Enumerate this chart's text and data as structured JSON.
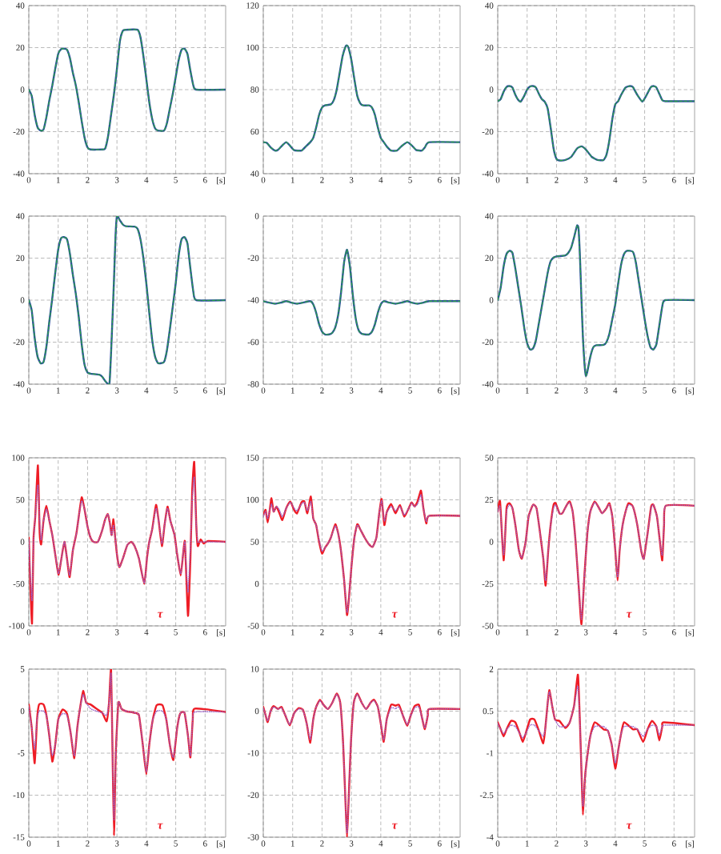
{
  "chart_data": [
    {
      "type": "line",
      "xlim": [
        0,
        6.7
      ],
      "ylim": [
        -40,
        40
      ],
      "xticks": [
        0,
        1,
        2,
        3,
        4,
        5,
        6
      ],
      "yticks": [
        -40,
        -20,
        0,
        20,
        40
      ],
      "xlabel": "[s]",
      "grid": true,
      "x": [
        0,
        0.1,
        0.2,
        0.3,
        0.4,
        0.5,
        0.6,
        0.7,
        0.8,
        0.9,
        1.0,
        1.1,
        1.2,
        1.3,
        1.4,
        1.5,
        1.6,
        1.7,
        1.8,
        1.9,
        2.0,
        2.1,
        2.5,
        2.6,
        2.7,
        2.8,
        2.9,
        3.0,
        3.1,
        3.2,
        3.3,
        3.7,
        3.8,
        3.9,
        4.0,
        4.1,
        4.2,
        4.3,
        4.4,
        4.6,
        4.7,
        4.8,
        4.9,
        5.0,
        5.1,
        5.2,
        5.3,
        5.4,
        5.5,
        5.6,
        5.7,
        6.7
      ],
      "series": [
        {
          "color": "#2d4e9e",
          "line_style": "solid",
          "values": [
            0,
            -3,
            -12,
            -18,
            -19.5,
            -19,
            -13,
            -5,
            2,
            10,
            17,
            19.3,
            19.5,
            19,
            15,
            8,
            2,
            -6,
            -15,
            -23,
            -27.5,
            -28.5,
            -28.5,
            -28,
            -22,
            -12,
            -2,
            10,
            23,
            28,
            28.5,
            28.5,
            25,
            16,
            5,
            -6,
            -14,
            -18.5,
            -19.5,
            -19.5,
            -16,
            -9,
            -2,
            6,
            14,
            19,
            19.5,
            17,
            9,
            2,
            0,
            0
          ]
        },
        {
          "color": "#2ca24a",
          "line_style": "dashed",
          "values": [
            0,
            -3,
            -12,
            -18,
            -19.5,
            -19,
            -13,
            -5,
            2,
            10,
            17,
            19.3,
            19.5,
            19,
            15,
            8,
            2,
            -6,
            -15,
            -23,
            -27.5,
            -28.5,
            -28.5,
            -28,
            -22,
            -12,
            -2,
            10,
            23,
            28,
            28.5,
            28.5,
            25,
            16,
            5,
            -6,
            -14,
            -18.5,
            -19.5,
            -19.5,
            -16,
            -9,
            -2,
            6,
            14,
            19,
            19.5,
            17,
            9,
            2,
            0,
            0
          ]
        }
      ]
    },
    {
      "type": "line",
      "xlim": [
        0,
        6.7
      ],
      "ylim": [
        40,
        120
      ],
      "xticks": [
        0,
        1,
        2,
        3,
        4,
        5,
        6
      ],
      "yticks": [
        40,
        60,
        80,
        100,
        120
      ],
      "xlabel": "[s]",
      "grid": true,
      "x": [
        0,
        0.12,
        0.25,
        0.4,
        0.5,
        0.65,
        0.78,
        0.9,
        1.05,
        1.3,
        1.45,
        1.6,
        1.7,
        1.8,
        1.9,
        2.0,
        2.1,
        2.3,
        2.4,
        2.5,
        2.6,
        2.7,
        2.8,
        2.85,
        2.9,
        3.0,
        3.1,
        3.2,
        3.3,
        3.4,
        3.6,
        3.7,
        3.8,
        3.9,
        4.0,
        4.1,
        4.2,
        4.35,
        4.55,
        4.7,
        4.9,
        5.05,
        5.2,
        5.4,
        5.5,
        5.65,
        6.7
      ],
      "series": [
        {
          "color": "#2d4e9e",
          "line_style": "solid",
          "values": [
            55,
            54.7,
            52.5,
            51,
            51.3,
            53.5,
            55,
            53.5,
            51.2,
            51,
            53,
            55,
            57,
            62,
            68,
            71.5,
            72.5,
            73,
            75,
            80,
            88,
            96,
            100.5,
            101,
            100,
            94,
            85,
            77,
            73.5,
            72.5,
            72.5,
            71.5,
            68,
            62,
            57,
            55,
            53,
            51,
            51,
            53,
            55,
            53.5,
            51.3,
            51,
            52.5,
            55,
            55
          ]
        },
        {
          "color": "#2ca24a",
          "line_style": "dashed",
          "values": [
            55,
            54.7,
            52.5,
            51,
            51.3,
            53.5,
            55,
            53.5,
            51.2,
            51,
            53,
            55,
            57,
            62,
            68,
            71.5,
            72.5,
            73,
            75,
            80,
            88,
            96,
            100.5,
            101,
            100,
            94,
            85,
            77,
            73.5,
            72.5,
            72.5,
            71.5,
            68,
            62,
            57,
            55,
            53,
            51,
            51,
            53,
            55,
            53.5,
            51.3,
            51,
            52.5,
            55,
            55
          ]
        }
      ]
    },
    {
      "type": "line",
      "xlim": [
        0,
        6.7
      ],
      "ylim": [
        -40,
        40
      ],
      "xticks": [
        0,
        1,
        2,
        3,
        4,
        5,
        6
      ],
      "yticks": [
        -40,
        -20,
        0,
        20,
        40
      ],
      "xlabel": "[s]",
      "grid": true,
      "x": [
        0,
        0.1,
        0.2,
        0.3,
        0.4,
        0.5,
        0.6,
        0.7,
        0.78,
        0.9,
        1.0,
        1.1,
        1.2,
        1.3,
        1.4,
        1.5,
        1.6,
        1.7,
        1.8,
        1.9,
        2.0,
        2.1,
        2.3,
        2.5,
        2.7,
        2.85,
        3.0,
        3.2,
        3.4,
        3.6,
        3.7,
        3.8,
        3.9,
        4.0,
        4.1,
        4.2,
        4.35,
        4.5,
        4.6,
        4.75,
        4.92,
        5.05,
        5.2,
        5.3,
        5.4,
        5.5,
        5.6,
        5.7,
        6.7
      ],
      "series": [
        {
          "color": "#2d4e9e",
          "line_style": "solid",
          "values": [
            -5.5,
            -4.5,
            -1,
            1.3,
            1.7,
            1,
            -2.5,
            -5,
            -5.7,
            -3,
            0,
            1.5,
            1.7,
            1,
            -2,
            -4.5,
            -5.8,
            -9,
            -18,
            -28,
            -33,
            -33.7,
            -33.5,
            -32,
            -28,
            -27,
            -28.5,
            -32,
            -33.5,
            -33.5,
            -31,
            -24,
            -14,
            -7,
            -5.5,
            -2.5,
            1,
            1.7,
            1.2,
            -2.5,
            -5.7,
            -3,
            1,
            1.7,
            1,
            -2,
            -5,
            -5.5,
            -5.5
          ]
        },
        {
          "color": "#2ca24a",
          "line_style": "dashed",
          "values": [
            -5.5,
            -4.5,
            -1,
            1.3,
            1.7,
            1,
            -2.5,
            -5,
            -5.7,
            -3,
            0,
            1.5,
            1.7,
            1,
            -2,
            -4.5,
            -5.8,
            -9,
            -18,
            -28,
            -33,
            -33.7,
            -33.5,
            -32,
            -28,
            -27,
            -28.5,
            -32,
            -33.5,
            -33.5,
            -31,
            -24,
            -14,
            -7,
            -5.5,
            -2.5,
            1,
            1.7,
            1.2,
            -2.5,
            -5.7,
            -3,
            1,
            1.7,
            1,
            -2,
            -5,
            -5.5,
            -5.5
          ]
        }
      ]
    },
    {
      "type": "line",
      "xlim": [
        0,
        6.7
      ],
      "ylim": [
        -40,
        40
      ],
      "xticks": [
        0,
        1,
        2,
        3,
        4,
        5,
        6
      ],
      "yticks": [
        -40,
        -20,
        0,
        20,
        40
      ],
      "xlabel": "[s]",
      "grid": true,
      "x": [
        0,
        0.1,
        0.2,
        0.3,
        0.4,
        0.5,
        0.6,
        0.7,
        0.8,
        0.9,
        1.0,
        1.1,
        1.2,
        1.3,
        1.4,
        1.5,
        1.6,
        1.7,
        1.8,
        1.9,
        2.0,
        2.1,
        2.4,
        2.5,
        2.6,
        2.7,
        2.75,
        2.8,
        2.85,
        2.9,
        2.95,
        3.0,
        3.1,
        3.2,
        3.3,
        3.6,
        3.7,
        3.8,
        3.9,
        4.0,
        4.1,
        4.2,
        4.3,
        4.4,
        4.6,
        4.7,
        4.8,
        4.9,
        5.0,
        5.1,
        5.2,
        5.3,
        5.4,
        5.5,
        5.6,
        5.7,
        6.7
      ],
      "series": [
        {
          "color": "#2d4e9e",
          "line_style": "solid",
          "values": [
            0,
            -5,
            -18,
            -27,
            -30,
            -29.5,
            -22,
            -10,
            1,
            13,
            24,
            29.5,
            30,
            29,
            22,
            12,
            3,
            -8,
            -21,
            -31,
            -34.5,
            -35,
            -35.5,
            -36.5,
            -38.5,
            -40,
            -39,
            -25,
            -8,
            10,
            30,
            40,
            38,
            36,
            35.2,
            35,
            34,
            29,
            20,
            8,
            -6,
            -19,
            -27,
            -30,
            -29.5,
            -24,
            -14,
            -3,
            8,
            21,
            29,
            30,
            27,
            15,
            4,
            0,
            0
          ]
        },
        {
          "color": "#2ca24a",
          "line_style": "dashed",
          "values": [
            0,
            -5,
            -18,
            -27,
            -30,
            -29.5,
            -22,
            -10,
            1,
            13,
            24,
            29.5,
            30,
            29,
            22,
            12,
            3,
            -8,
            -21,
            -31,
            -34.5,
            -35,
            -35.5,
            -36.5,
            -38.5,
            -40,
            -39,
            -25,
            -8,
            10,
            30,
            40,
            38,
            36,
            35.2,
            35,
            34,
            29,
            20,
            8,
            -6,
            -19,
            -27,
            -30,
            -29.5,
            -24,
            -14,
            -3,
            8,
            21,
            29,
            30,
            27,
            15,
            4,
            0,
            0
          ]
        }
      ]
    },
    {
      "type": "line",
      "xlim": [
        0,
        6.7
      ],
      "ylim": [
        -80,
        0
      ],
      "xticks": [
        0,
        1,
        2,
        3,
        4,
        5,
        6
      ],
      "yticks": [
        -80,
        -60,
        -40,
        -20,
        0
      ],
      "xlabel": "[s]",
      "grid": true,
      "x": [
        0,
        0.2,
        0.4,
        0.6,
        0.78,
        0.95,
        1.15,
        1.35,
        1.6,
        1.7,
        1.8,
        1.9,
        2.0,
        2.1,
        2.25,
        2.35,
        2.45,
        2.55,
        2.65,
        2.75,
        2.85,
        2.95,
        3.05,
        3.15,
        3.25,
        3.35,
        3.45,
        3.6,
        3.7,
        3.8,
        3.9,
        4.0,
        4.1,
        4.3,
        4.5,
        4.7,
        4.9,
        5.05,
        5.25,
        5.45,
        5.65,
        6.7
      ],
      "series": [
        {
          "color": "#2d4e9e",
          "line_style": "solid",
          "values": [
            -40.5,
            -41.2,
            -41.7,
            -41.2,
            -40.5,
            -41.2,
            -41.7,
            -41.2,
            -40.5,
            -42,
            -46,
            -51.5,
            -55,
            -56.3,
            -56.3,
            -55.5,
            -53,
            -47,
            -36,
            -22,
            -16,
            -24,
            -38,
            -49,
            -54.5,
            -56,
            -56.3,
            -56.3,
            -55,
            -51.5,
            -46,
            -42,
            -40.5,
            -41.2,
            -41.7,
            -41.2,
            -40.5,
            -41.2,
            -41.7,
            -41.2,
            -40.5,
            -40.5
          ]
        },
        {
          "color": "#2ca24a",
          "line_style": "dashed",
          "values": [
            -40.5,
            -41.2,
            -41.7,
            -41.2,
            -40.5,
            -41.2,
            -41.7,
            -41.2,
            -40.5,
            -42,
            -46,
            -51.5,
            -55,
            -56.3,
            -56.3,
            -55.5,
            -53,
            -47,
            -36,
            -22,
            -16,
            -24,
            -38,
            -49,
            -54.5,
            -56,
            -56.3,
            -56.3,
            -55,
            -51.5,
            -46,
            -42,
            -40.5,
            -41.2,
            -41.7,
            -41.2,
            -40.5,
            -41.2,
            -41.7,
            -41.2,
            -40.5,
            -40.5
          ]
        }
      ]
    },
    {
      "type": "line",
      "xlim": [
        0,
        6.7
      ],
      "ylim": [
        -40,
        40
      ],
      "xticks": [
        0,
        1,
        2,
        3,
        4,
        5,
        6
      ],
      "yticks": [
        -40,
        -20,
        0,
        20,
        40
      ],
      "xlabel": "[s]",
      "grid": true,
      "x": [
        0,
        0.1,
        0.2,
        0.3,
        0.4,
        0.5,
        0.6,
        0.7,
        0.8,
        0.9,
        1.0,
        1.1,
        1.2,
        1.3,
        1.4,
        1.5,
        1.6,
        1.7,
        1.8,
        1.9,
        2.0,
        2.3,
        2.4,
        2.5,
        2.6,
        2.7,
        2.75,
        2.8,
        2.85,
        2.9,
        2.95,
        3.0,
        3.05,
        3.15,
        3.25,
        3.35,
        3.6,
        3.7,
        3.8,
        3.9,
        4.0,
        4.1,
        4.2,
        4.3,
        4.4,
        4.6,
        4.7,
        4.8,
        4.9,
        5.0,
        5.1,
        5.2,
        5.3,
        5.4,
        5.5,
        5.6,
        5.7,
        6.7
      ],
      "series": [
        {
          "color": "#2d4e9e",
          "line_style": "solid",
          "values": [
            0,
            6,
            16,
            22,
            23.5,
            22.5,
            15,
            6,
            -3,
            -13,
            -20.5,
            -23.5,
            -23,
            -19,
            -11,
            -3,
            5,
            13,
            18.5,
            20.3,
            20.8,
            21.3,
            22.5,
            25,
            30,
            35.5,
            34,
            20,
            0,
            -18,
            -30,
            -36,
            -34,
            -27,
            -22.5,
            -21.5,
            -21.3,
            -20,
            -16,
            -9,
            -2,
            8,
            17,
            22,
            23.5,
            23,
            18,
            9,
            0,
            -9,
            -17,
            -22.5,
            -23.5,
            -21,
            -12,
            -3,
            0,
            0
          ]
        },
        {
          "color": "#2ca24a",
          "line_style": "dashed",
          "values": [
            0,
            6,
            16,
            22,
            23.5,
            22.5,
            15,
            6,
            -3,
            -13,
            -20.5,
            -23.5,
            -23,
            -19,
            -11,
            -3,
            5,
            13,
            18.5,
            20.3,
            20.8,
            21.3,
            22.5,
            25,
            30,
            35.5,
            34,
            20,
            0,
            -18,
            -30,
            -36,
            -34,
            -27,
            -22.5,
            -21.5,
            -21.3,
            -20,
            -16,
            -9,
            -2,
            8,
            17,
            22,
            23.5,
            23,
            18,
            9,
            0,
            -9,
            -17,
            -22.5,
            -23.5,
            -21,
            -12,
            -3,
            0,
            0
          ]
        }
      ]
    },
    {
      "type": "line",
      "xlim": [
        0,
        6.7
      ],
      "ylim": [
        -100,
        100
      ],
      "xticks": [
        0,
        1,
        2,
        3,
        4,
        5,
        6
      ],
      "yticks": [
        -100,
        -50,
        0,
        50,
        100
      ],
      "xlabel": "[s]",
      "grid": true,
      "x": [
        0,
        0.05,
        0.11,
        0.16,
        0.22,
        0.31,
        0.37,
        0.42,
        0.5,
        0.6,
        0.7,
        0.8,
        0.9,
        1.01,
        1.1,
        1.21,
        1.3,
        1.39,
        1.5,
        1.62,
        1.7,
        1.8,
        1.9,
        2.0,
        2.1,
        2.2,
        2.35,
        2.5,
        2.6,
        2.69,
        2.76,
        2.82,
        2.88,
        2.94,
        3.0,
        3.08,
        3.2,
        3.35,
        3.49,
        3.6,
        3.75,
        3.93,
        4.02,
        4.1,
        4.2,
        4.33,
        4.42,
        4.53,
        4.62,
        4.72,
        4.82,
        4.96,
        5.05,
        5.17,
        5.25,
        5.31,
        5.36,
        5.42,
        5.5,
        5.56,
        5.63,
        5.7,
        5.75,
        5.85,
        5.95,
        6.1,
        6.7
      ],
      "series": [
        {
          "name": "τ",
          "color": "#ee1c25",
          "line_style": "solid",
          "values": [
            5,
            -50,
            -97,
            3,
            30,
            91,
            10,
            -3,
            25,
            43,
            25,
            8,
            -15,
            -39,
            -22,
            0,
            -20,
            -42,
            -10,
            10,
            30,
            53,
            38,
            18,
            5,
            0,
            0,
            14,
            27,
            33,
            22,
            8,
            27,
            5,
            -15,
            -30,
            -20,
            -4,
            0,
            -5,
            -20,
            -50,
            -20,
            0,
            15,
            44,
            25,
            -5,
            20,
            42,
            25,
            8,
            -15,
            -40,
            -15,
            1,
            -40,
            -88,
            -20,
            60,
            95,
            20,
            -5,
            3,
            -2,
            1,
            0
          ]
        },
        {
          "color": "#9a62c8",
          "line_style": "dotted",
          "values": [
            2,
            -40,
            -70,
            0,
            30,
            68,
            25,
            2,
            25,
            39,
            25,
            8,
            -15,
            -38,
            -22,
            0,
            -20,
            -40,
            -10,
            10,
            30,
            49,
            38,
            18,
            5,
            0,
            0,
            14,
            27,
            33,
            22,
            8,
            20,
            5,
            -15,
            -30,
            -20,
            -4,
            0,
            -5,
            -20,
            -49,
            -20,
            0,
            15,
            40,
            25,
            -2,
            20,
            40,
            25,
            8,
            -15,
            -38,
            -15,
            0,
            -30,
            -60,
            -5,
            50,
            77,
            20,
            0,
            0,
            0,
            0,
            0
          ]
        }
      ]
    },
    {
      "type": "line",
      "xlim": [
        0,
        6.7
      ],
      "ylim": [
        -50,
        150
      ],
      "xticks": [
        0,
        1,
        2,
        3,
        4,
        5,
        6
      ],
      "yticks": [
        -50,
        0,
        50,
        100,
        150
      ],
      "xlabel": "[s]",
      "grid": true,
      "x": [
        0,
        0.08,
        0.15,
        0.22,
        0.28,
        0.35,
        0.45,
        0.55,
        0.65,
        0.78,
        0.92,
        1.05,
        1.15,
        1.3,
        1.4,
        1.5,
        1.62,
        1.7,
        1.8,
        1.9,
        2.0,
        2.1,
        2.2,
        2.3,
        2.45,
        2.55,
        2.65,
        2.75,
        2.85,
        2.92,
        3.0,
        3.1,
        3.2,
        3.3,
        3.45,
        3.6,
        3.72,
        3.85,
        3.95,
        4.03,
        4.12,
        4.2,
        4.35,
        4.5,
        4.65,
        4.8,
        4.95,
        5.05,
        5.15,
        5.25,
        5.37,
        5.45,
        5.55,
        5.65,
        6.7
      ],
      "series": [
        {
          "name": "τ",
          "color": "#ee1c25",
          "line_style": "solid",
          "values": [
            82,
            88,
            73,
            88,
            102,
            86,
            92,
            84,
            76,
            90,
            98,
            88,
            84,
            97,
            98,
            84,
            104,
            78,
            70,
            50,
            36,
            43,
            48,
            55,
            71,
            60,
            38,
            5,
            -37,
            -15,
            20,
            55,
            71,
            65,
            55,
            47,
            44,
            55,
            85,
            101,
            70,
            85,
            95,
            84,
            94,
            80,
            90,
            97,
            92,
            98,
            111,
            90,
            72,
            81,
            81
          ]
        },
        {
          "color": "#9a62c8",
          "line_style": "dotted",
          "values": [
            80,
            86,
            78,
            88,
            95,
            86,
            92,
            88,
            80,
            90,
            97,
            90,
            87,
            95,
            97,
            87,
            98,
            78,
            70,
            52,
            39,
            43,
            48,
            55,
            69,
            60,
            38,
            5,
            -34,
            -15,
            20,
            55,
            70,
            65,
            55,
            47,
            44,
            55,
            85,
            99,
            75,
            85,
            92,
            87,
            92,
            82,
            90,
            96,
            92,
            95,
            106,
            90,
            74,
            81,
            81
          ]
        }
      ]
    },
    {
      "type": "line",
      "xlim": [
        0,
        6.7
      ],
      "ylim": [
        -50,
        50
      ],
      "xticks": [
        0,
        1,
        2,
        3,
        4,
        5,
        6
      ],
      "yticks": [
        -50,
        -25,
        0,
        25,
        50
      ],
      "xlabel": "[s]",
      "grid": true,
      "x": [
        0,
        0.08,
        0.2,
        0.3,
        0.4,
        0.5,
        0.6,
        0.72,
        0.82,
        0.95,
        1.05,
        1.2,
        1.32,
        1.42,
        1.55,
        1.63,
        1.72,
        1.8,
        1.9,
        1.97,
        2.1,
        2.2,
        2.35,
        2.45,
        2.55,
        2.65,
        2.75,
        2.85,
        2.95,
        3.05,
        3.15,
        3.3,
        3.45,
        3.55,
        3.7,
        3.8,
        3.9,
        4.0,
        4.08,
        4.15,
        4.25,
        4.35,
        4.45,
        4.6,
        4.75,
        4.88,
        4.97,
        5.1,
        5.22,
        5.3,
        5.42,
        5.52,
        5.6,
        5.66,
        5.72,
        6.7
      ],
      "series": [
        {
          "name": "τ",
          "color": "#ee1c25",
          "line_style": "solid",
          "values": [
            18,
            24,
            -11,
            20,
            23,
            20,
            10,
            -5,
            -10,
            0,
            15,
            22,
            20,
            8,
            -10,
            -26,
            -5,
            10,
            22,
            23,
            17,
            17,
            22,
            24,
            18,
            0,
            -25,
            -49,
            -20,
            5,
            18,
            24,
            20,
            17,
            20,
            23,
            15,
            -5,
            -23,
            -5,
            10,
            18,
            23,
            21,
            10,
            -5,
            -10,
            5,
            21,
            22,
            15,
            0,
            -11,
            10,
            21.5,
            21.5
          ]
        },
        {
          "color": "#9a62c8",
          "line_style": "dotted",
          "values": [
            18,
            21,
            -8,
            18,
            22,
            20,
            10,
            -5,
            -9.5,
            0,
            15,
            22,
            20,
            8,
            -10,
            -23,
            -5,
            10,
            20,
            22,
            17,
            17,
            22,
            23.5,
            18,
            0,
            -25,
            -46,
            -20,
            5,
            18,
            23.5,
            20,
            17,
            20,
            22.5,
            15,
            -5,
            -21,
            -5,
            10,
            18,
            22,
            21,
            10,
            -5,
            -10,
            5,
            20,
            22,
            15,
            0,
            -8,
            10,
            21.5,
            21.5
          ]
        }
      ]
    },
    {
      "type": "line",
      "xlim": [
        0,
        6.7
      ],
      "ylim": [
        -15,
        5
      ],
      "xticks": [
        0,
        1,
        2,
        3,
        4,
        5,
        6
      ],
      "yticks": [
        -15,
        -10,
        -5,
        0,
        5
      ],
      "xlabel": "[s]",
      "grid": true,
      "x": [
        0,
        0.1,
        0.2,
        0.28,
        0.35,
        0.5,
        0.6,
        0.7,
        0.8,
        0.9,
        1.0,
        1.15,
        1.3,
        1.42,
        1.55,
        1.65,
        1.75,
        1.85,
        1.95,
        2.1,
        2.3,
        2.5,
        2.65,
        2.73,
        2.8,
        2.85,
        2.9,
        2.96,
        3.05,
        3.15,
        3.3,
        3.6,
        3.75,
        3.88,
        4.0,
        4.1,
        4.22,
        4.35,
        4.55,
        4.68,
        4.8,
        4.92,
        5.05,
        5.15,
        5.3,
        5.42,
        5.5,
        5.58,
        5.65,
        6.7
      ],
      "series": [
        {
          "name": "τ",
          "color": "#ee1c25",
          "line_style": "solid",
          "values": [
            0.8,
            -2,
            -6.2,
            -1,
            0.8,
            0.8,
            -0.5,
            -3,
            -6,
            -4,
            -1,
            0.2,
            -0.3,
            -2.5,
            -5.6,
            -2,
            0.5,
            2.4,
            1,
            0.8,
            0.3,
            -0.2,
            -1.2,
            1,
            5,
            -5,
            -14.8,
            -5,
            1,
            0.3,
            0,
            -0.2,
            -0.5,
            -4,
            -7.5,
            -4,
            -1,
            0.7,
            0.7,
            -1,
            -4,
            -5.8,
            -2,
            -0.3,
            -0.2,
            -3,
            -5.5,
            -1,
            0.3,
            -0.1
          ]
        },
        {
          "color": "#9a62c8",
          "line_style": "dotted",
          "values": [
            0.5,
            -2,
            -4.5,
            -1,
            0,
            0,
            -0.5,
            -3,
            -5.3,
            -4,
            -1,
            -0.3,
            -0.5,
            -2.5,
            -5.3,
            -2,
            0.5,
            2,
            1,
            0.3,
            0,
            -0.2,
            -0.5,
            1,
            4.5,
            -5,
            -13,
            -5,
            1,
            0.3,
            0,
            -0.2,
            -0.5,
            -4,
            -7.2,
            -4,
            -1,
            0,
            0,
            -1,
            -4,
            -5.5,
            -2,
            -0.3,
            -0.2,
            -3,
            -5.3,
            -1,
            -0.1,
            -0.1
          ]
        }
      ]
    },
    {
      "type": "line",
      "xlim": [
        0,
        6.7
      ],
      "ylim": [
        -30,
        10
      ],
      "xticks": [
        0,
        1,
        2,
        3,
        4,
        5,
        6
      ],
      "yticks": [
        -30,
        -20,
        -10,
        0,
        10
      ],
      "xlabel": "[s]",
      "grid": true,
      "x": [
        0,
        0.08,
        0.15,
        0.25,
        0.35,
        0.5,
        0.62,
        0.75,
        0.9,
        1.05,
        1.2,
        1.35,
        1.48,
        1.6,
        1.7,
        1.8,
        1.93,
        2.05,
        2.2,
        2.35,
        2.5,
        2.62,
        2.72,
        2.8,
        2.85,
        2.9,
        2.98,
        3.08,
        3.2,
        3.35,
        3.5,
        3.65,
        3.77,
        3.9,
        4.0,
        4.1,
        4.2,
        4.35,
        4.5,
        4.62,
        4.75,
        4.9,
        5.02,
        5.15,
        5.3,
        5.4,
        5.5,
        5.6,
        5.65,
        6.7
      ],
      "series": [
        {
          "name": "τ",
          "color": "#ee1c25",
          "line_style": "solid",
          "values": [
            1,
            -1,
            -2.6,
            0,
            1.2,
            0.5,
            1,
            -1,
            -3.4,
            -0.5,
            0.7,
            0.3,
            -3,
            -7.5,
            -2,
            1,
            2.7,
            1.5,
            0.5,
            2,
            4.2,
            2,
            -8,
            -22,
            -30,
            -22,
            -8,
            2,
            4.2,
            2,
            0.5,
            2,
            2.7,
            1,
            -3,
            -7.3,
            -2,
            1.5,
            1.3,
            1.5,
            -1,
            -3.5,
            -1,
            1.2,
            1.5,
            -1.5,
            -4.3,
            -1,
            0.5,
            0.5
          ]
        },
        {
          "color": "#9a62c8",
          "line_style": "dotted",
          "values": [
            0.7,
            -1,
            -2.3,
            0,
            1,
            0.5,
            0.8,
            -1,
            -3.2,
            -0.5,
            0.5,
            0.3,
            -3,
            -6.8,
            -2,
            1,
            2.5,
            1.5,
            0.5,
            2,
            4,
            2,
            -8,
            -22,
            -29,
            -22,
            -8,
            2,
            4,
            2,
            0.5,
            2,
            2.5,
            1,
            -3,
            -6.8,
            -2,
            0.8,
            0.6,
            1,
            -1,
            -3.2,
            -1,
            0.8,
            1,
            -1.5,
            -4,
            -1,
            0.5,
            0.5
          ]
        }
      ]
    },
    {
      "type": "line",
      "xlim": [
        0,
        6.7
      ],
      "ylim": [
        -4,
        2
      ],
      "xticks": [
        0,
        1,
        2,
        3,
        4,
        5,
        6
      ],
      "yticks": [
        -4,
        -2.5,
        -1,
        0.5,
        2
      ],
      "xlabel": "[s]",
      "grid": true,
      "x": [
        0,
        0.1,
        0.2,
        0.3,
        0.45,
        0.6,
        0.75,
        0.85,
        0.95,
        1.1,
        1.25,
        1.4,
        1.55,
        1.62,
        1.7,
        1.76,
        1.85,
        1.95,
        2.1,
        2.3,
        2.45,
        2.6,
        2.73,
        2.8,
        2.86,
        2.9,
        2.96,
        3.02,
        3.15,
        3.3,
        3.6,
        3.75,
        3.88,
        4.0,
        4.1,
        4.2,
        4.3,
        4.6,
        4.75,
        4.95,
        5.1,
        5.25,
        5.4,
        5.5,
        5.6,
        5.65,
        6.7
      ],
      "series": [
        {
          "name": "τ",
          "color": "#ee1c25",
          "line_style": "solid",
          "values": [
            0.1,
            -0.15,
            -0.4,
            -0.15,
            0.15,
            0.1,
            -0.3,
            -0.6,
            -0.3,
            0.2,
            0.2,
            -0.2,
            -0.65,
            -0.1,
            0.8,
            1.25,
            0.7,
            0.2,
            0.15,
            -0.1,
            0.1,
            0.7,
            1.8,
            0,
            -2,
            -3.2,
            -2,
            -1.35,
            -0.4,
            0.1,
            -0.15,
            -0.2,
            -0.7,
            -1.55,
            -0.9,
            -0.3,
            0.1,
            -0.15,
            -0.15,
            -0.6,
            -0.15,
            0.15,
            -0.05,
            -0.55,
            -0.05,
            0.1,
            0
          ]
        },
        {
          "color": "#9a62c8",
          "line_style": "dotted",
          "values": [
            0.05,
            -0.15,
            -0.3,
            -0.15,
            0,
            -0.05,
            -0.3,
            -0.45,
            -0.3,
            0,
            0,
            -0.2,
            -0.4,
            -0.1,
            0.8,
            1.2,
            0.7,
            0.2,
            -0.05,
            -0.05,
            0.1,
            0.7,
            1.4,
            0,
            -2,
            -2.9,
            -2,
            -1.35,
            -0.4,
            -0.05,
            -0.05,
            -0.2,
            -0.7,
            -1.35,
            -0.9,
            -0.3,
            -0.05,
            -0.05,
            -0.15,
            -0.4,
            -0.15,
            0,
            -0.05,
            -0.35,
            -0.05,
            0,
            0
          ]
        }
      ]
    }
  ]
}
